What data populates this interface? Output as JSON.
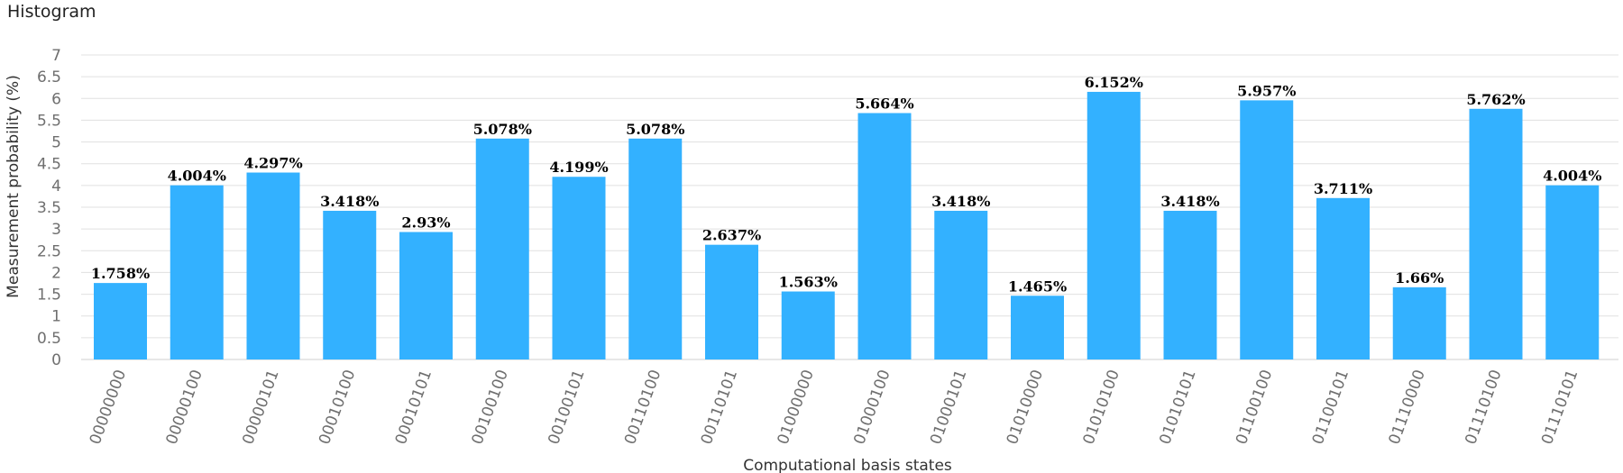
{
  "chart_data": {
    "type": "bar",
    "title": "Histogram",
    "xlabel": "Computational basis states",
    "ylabel": "Measurement probability (%)",
    "ylim": [
      0,
      7
    ],
    "yticks": [
      "0",
      "0.5",
      "1",
      "1.5",
      "2",
      "2.5",
      "3",
      "3.5",
      "4",
      "4.5",
      "5",
      "5.5",
      "6",
      "6.5",
      "7"
    ],
    "grid": true,
    "bar_color": "#33b1ff",
    "categories": [
      "00000000",
      "00000100",
      "00000101",
      "00010100",
      "00010101",
      "00100100",
      "00100101",
      "00110100",
      "00110101",
      "01000000",
      "01000100",
      "01000101",
      "01010000",
      "01010100",
      "01010101",
      "01100100",
      "01100101",
      "01110000",
      "01110100",
      "01110101"
    ],
    "values": [
      1.758,
      4.004,
      4.297,
      3.418,
      2.93,
      5.078,
      4.199,
      5.078,
      2.637,
      1.563,
      5.664,
      3.418,
      1.465,
      6.152,
      3.418,
      5.957,
      3.711,
      1.66,
      5.762,
      4.004
    ],
    "value_labels": [
      "1.758%",
      "4.004%",
      "4.297%",
      "3.418%",
      "2.93%",
      "5.078%",
      "4.199%",
      "5.078%",
      "2.637%",
      "1.563%",
      "5.664%",
      "3.418%",
      "1.465%",
      "6.152%",
      "3.418%",
      "5.957%",
      "3.711%",
      "1.66%",
      "5.762%",
      "4.004%"
    ]
  }
}
